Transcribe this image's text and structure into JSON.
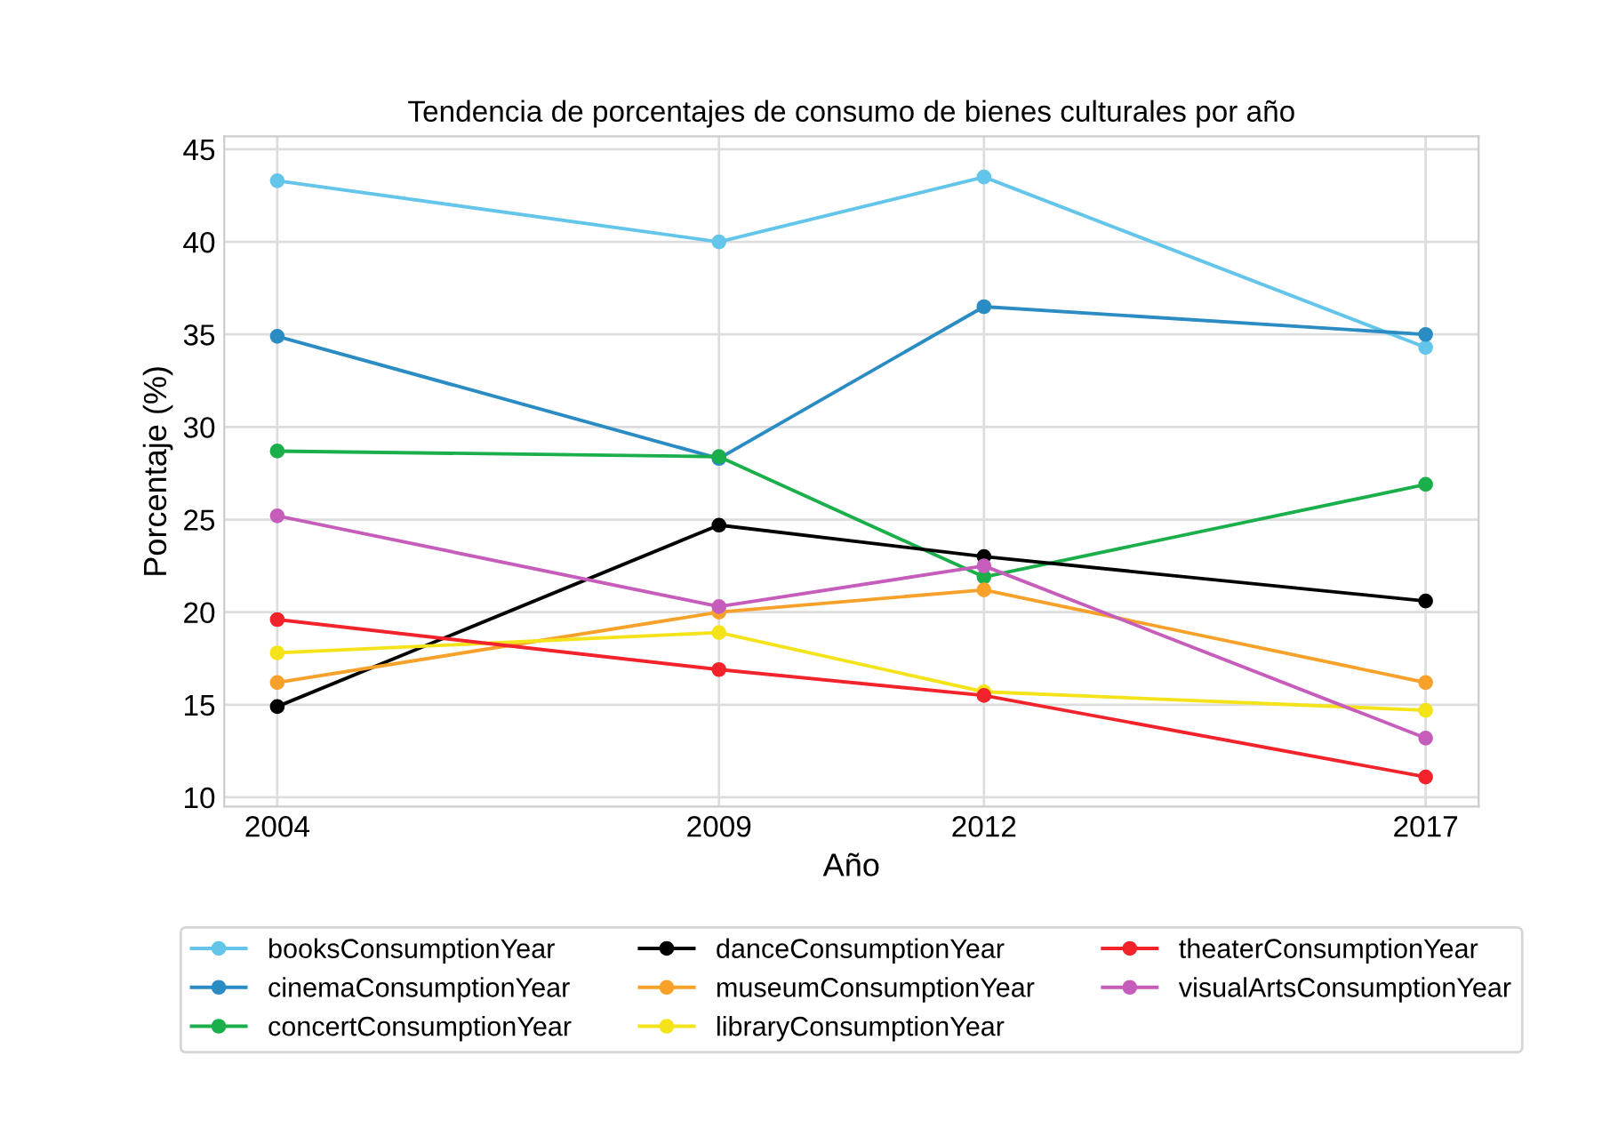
{
  "chart_data": {
    "type": "line",
    "title": "Tendencia de porcentajes de consumo de bienes culturales por año",
    "xlabel": "Año",
    "ylabel": "Porcentaje (%)",
    "x": [
      2004,
      2009,
      2012,
      2017
    ],
    "series": [
      {
        "name": "booksConsumptionYear",
        "color": "#63c5ea",
        "values": [
          43.3,
          40.0,
          43.5,
          34.3
        ]
      },
      {
        "name": "cinemaConsumptionYear",
        "color": "#2b8cc4",
        "values": [
          34.9,
          28.3,
          36.5,
          35.0
        ]
      },
      {
        "name": "concertConsumptionYear",
        "color": "#1aaf4b",
        "values": [
          28.7,
          28.4,
          21.9,
          26.9
        ]
      },
      {
        "name": "danceConsumptionYear",
        "color": "#000000",
        "values": [
          14.9,
          24.7,
          23.0,
          20.6
        ]
      },
      {
        "name": "museumConsumptionYear",
        "color": "#f7a12a",
        "values": [
          16.2,
          20.0,
          21.2,
          16.2
        ]
      },
      {
        "name": "libraryConsumptionYear",
        "color": "#f5e31a",
        "values": [
          17.8,
          18.9,
          15.7,
          14.7
        ]
      },
      {
        "name": "theaterConsumptionYear",
        "color": "#f2232a",
        "values": [
          19.6,
          16.9,
          15.5,
          11.1
        ]
      },
      {
        "name": "visualArtsConsumptionYear",
        "color": "#c65dbb",
        "values": [
          25.2,
          20.3,
          22.5,
          13.2
        ]
      }
    ],
    "xlim": [
      2003.4,
      2017.6
    ],
    "ylim": [
      9.5,
      45.7
    ],
    "xticks": [
      2004,
      2009,
      2012,
      2017
    ],
    "yticks": [
      10,
      15,
      20,
      25,
      30,
      35,
      40,
      45
    ],
    "grid": true,
    "legend": "bottom",
    "marker": "circle",
    "line_style": "solid"
  }
}
